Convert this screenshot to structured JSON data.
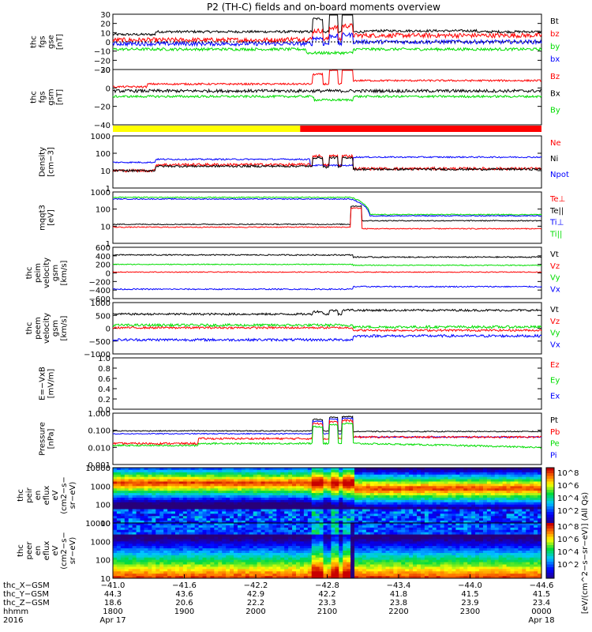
{
  "title": "P2 (TH-C) fields and on-board moments overview",
  "colors": {
    "black": "#000000",
    "red": "#ff0000",
    "green": "#00dd00",
    "blue": "#0000ff",
    "yellow": "#ffff00"
  },
  "chart_data": [
    {
      "type": "line",
      "id": "fgs_gse",
      "ylabel": [
        "thc",
        "fgs",
        "gse",
        "[nT]"
      ],
      "ylim": [
        -30,
        30
      ],
      "yticks": [
        "30",
        "20",
        "10",
        "0",
        "−10",
        "−20",
        "−30"
      ],
      "series": [
        {
          "name": "Bt",
          "color": "#000000"
        },
        {
          "name": "bz",
          "color": "#ff0000"
        },
        {
          "name": "by",
          "color": "#00dd00"
        },
        {
          "name": "bx",
          "color": "#0000ff"
        }
      ]
    },
    {
      "type": "line",
      "id": "fgs_gsm",
      "ylabel": [
        "thc",
        "fgs",
        "gsm",
        "[nT]"
      ],
      "ylim": [
        -50,
        30
      ],
      "yticks": [
        "20",
        "0",
        "−20",
        "−40"
      ],
      "series": [
        {
          "name": "Bz",
          "color": "#ff0000"
        },
        {
          "name": "Bx",
          "color": "#000000"
        },
        {
          "name": "By",
          "color": "#00dd00"
        }
      ]
    },
    {
      "type": "bar",
      "id": "mode_bar",
      "segments": [
        {
          "color": "yellow",
          "frac": 0.437
        },
        {
          "color": "red",
          "frac": 0.563
        }
      ]
    },
    {
      "type": "line",
      "id": "density",
      "ylabel": [
        "Density",
        "[cm−3]"
      ],
      "scale": "log",
      "yticks": [
        "1000",
        "100",
        "10",
        "1"
      ],
      "series": [
        {
          "name": "Ne",
          "color": "#ff0000"
        },
        {
          "name": "Ni",
          "color": "#000000"
        },
        {
          "name": "Npot",
          "color": "#0000ff"
        }
      ]
    },
    {
      "type": "line",
      "id": "temperature",
      "ylabel": [
        "mqqt3",
        "[eV]"
      ],
      "scale": "log",
      "yticks": [
        "1000",
        "100",
        "10",
        "1"
      ],
      "series": [
        {
          "name": "Te⊥",
          "color": "#ff0000"
        },
        {
          "name": "Te||",
          "color": "#000000"
        },
        {
          "name": "Ti⊥",
          "color": "#0000ff"
        },
        {
          "name": "Ti||",
          "color": "#00dd00"
        }
      ]
    },
    {
      "type": "line",
      "id": "peim_velocity",
      "ylabel": [
        "thc",
        "peim",
        "velocity",
        "gsm",
        "[km/s]"
      ],
      "ylim": [
        -600,
        600
      ],
      "yticks": [
        "600",
        "400",
        "200",
        "0",
        "−200",
        "−400",
        "−600"
      ],
      "series": [
        {
          "name": "Vt",
          "color": "#000000"
        },
        {
          "name": "Vz",
          "color": "#ff0000"
        },
        {
          "name": "Vy",
          "color": "#00dd00"
        },
        {
          "name": "Vx",
          "color": "#0000ff"
        }
      ]
    },
    {
      "type": "line",
      "id": "peem_velocity",
      "ylabel": [
        "thc",
        "peem",
        "velocity",
        "gsm",
        "[km/s]"
      ],
      "ylim": [
        -1000,
        1000
      ],
      "yticks": [
        "1000",
        "500",
        "0",
        "−500",
        "−1000"
      ],
      "series": [
        {
          "name": "Vt",
          "color": "#000000"
        },
        {
          "name": "Vz",
          "color": "#ff0000"
        },
        {
          "name": "Vy",
          "color": "#00dd00"
        },
        {
          "name": "Vx",
          "color": "#0000ff"
        }
      ]
    },
    {
      "type": "line",
      "id": "efield",
      "ylabel": [
        "E=−VxB",
        "[mV/m]"
      ],
      "ylim": [
        0,
        1
      ],
      "yticks": [
        "1.0",
        "0.8",
        "0.6",
        "0.4",
        "0.2",
        "0.0"
      ],
      "series": [
        {
          "name": "Ez",
          "color": "#ff0000"
        },
        {
          "name": "Ey",
          "color": "#00dd00"
        },
        {
          "name": "Ex",
          "color": "#0000ff"
        }
      ]
    },
    {
      "type": "line",
      "id": "pressure",
      "ylabel": [
        "Pressure",
        "[nPa]"
      ],
      "scale": "log",
      "yticks": [
        "1.000",
        "0.100",
        "0.010",
        "0.001"
      ],
      "series": [
        {
          "name": "Pt",
          "color": "#000000"
        },
        {
          "name": "Pb",
          "color": "#ff0000"
        },
        {
          "name": "Pe",
          "color": "#00dd00"
        },
        {
          "name": "Pi",
          "color": "#0000ff"
        }
      ]
    },
    {
      "type": "heatmap",
      "id": "peir_spec",
      "ylabel": [
        "thc",
        "peir",
        "en",
        "eflux",
        "eV",
        "(cm2−s−",
        "sr−eV)"
      ],
      "scale": "log",
      "yticks": [
        "10000",
        "1000",
        "100",
        "10"
      ]
    },
    {
      "type": "heatmap",
      "id": "peer_spec",
      "ylabel": [
        "thc",
        "peer",
        "en",
        "eflux",
        "eV",
        "(cm2−s−",
        "sr−eV)"
      ],
      "scale": "log",
      "yticks": [
        "10000",
        "1000",
        "100",
        "10"
      ]
    }
  ],
  "colorbar": {
    "label": "[eV/(cm^2−s−sr−eV)] (All Qs)",
    "upper_ticks": [
      "10^8",
      "10^6",
      "10^4",
      "10^2"
    ],
    "lower_ticks": [
      "10^8",
      "10^6",
      "10^4",
      "10^2"
    ]
  },
  "x_axis": {
    "row_labels": [
      "thc_X−GSM",
      "thc_Y−GSM",
      "thc_Z−GSM",
      "hhmm",
      "2016"
    ],
    "ticks": [
      {
        "x": "−41.0",
        "y": "44.3",
        "z": "18.6",
        "hhmm": "1800",
        "date": "Apr 17"
      },
      {
        "x": "−41.6",
        "y": "43.6",
        "z": "20.6",
        "hhmm": "1900",
        "date": ""
      },
      {
        "x": "−42.2",
        "y": "42.9",
        "z": "22.2",
        "hhmm": "2000",
        "date": ""
      },
      {
        "x": "−42.8",
        "y": "42.2",
        "z": "23.3",
        "hhmm": "2100",
        "date": ""
      },
      {
        "x": "−43.4",
        "y": "41.8",
        "z": "23.8",
        "hhmm": "2200",
        "date": ""
      },
      {
        "x": "−44.0",
        "y": "41.5",
        "z": "23.9",
        "hhmm": "2300",
        "date": ""
      },
      {
        "x": "−44.6",
        "y": "41.5",
        "z": "23.4",
        "hhmm": "0000",
        "date": "Apr 18"
      }
    ]
  }
}
